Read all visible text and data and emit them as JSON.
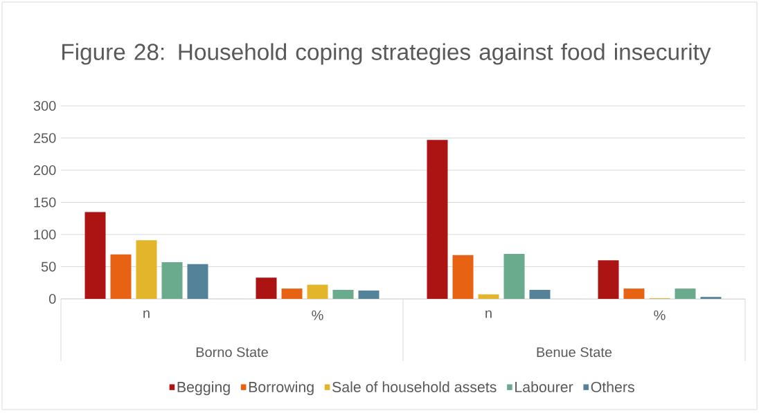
{
  "chart_data": {
    "type": "bar",
    "title": "Figure 28: Household coping strategies against food insecurity",
    "categories": [
      "n",
      "%",
      "n",
      "%"
    ],
    "annotations": [
      "Borno State",
      "Benue State"
    ],
    "series": [
      {
        "name": "Begging",
        "color": "#ac1414",
        "values": [
          135,
          33,
          247,
          60
        ]
      },
      {
        "name": "Borrowing",
        "color": "#e86214",
        "values": [
          69,
          16,
          68,
          16
        ]
      },
      {
        "name": "Sale of household assets",
        "color": "#e3b52b",
        "values": [
          91,
          22,
          7,
          1
        ]
      },
      {
        "name": "Labourer",
        "color": "#6aab8e",
        "values": [
          57,
          14,
          70,
          16
        ]
      },
      {
        "name": "Others",
        "color": "#548399",
        "values": [
          54,
          13,
          14,
          3
        ]
      }
    ],
    "ylim": [
      0,
      300
    ],
    "yticks": [
      0,
      50,
      100,
      150,
      200,
      250,
      300
    ],
    "grid": "y",
    "legend": "bottom"
  }
}
